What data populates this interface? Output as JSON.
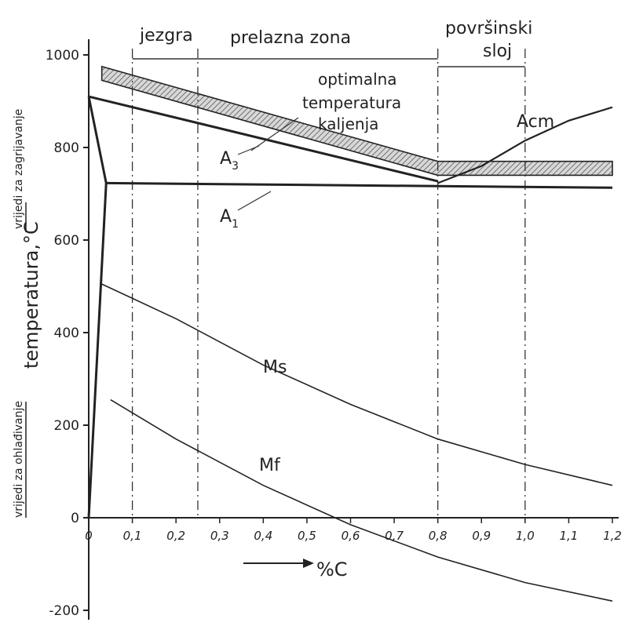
{
  "chart_data": {
    "type": "line",
    "xlim": [
      0,
      1.2
    ],
    "ylim": [
      -200,
      1000
    ],
    "x_ticks": [
      "0",
      "0,1",
      "0,2",
      "0,3",
      "0,4",
      "0,5",
      "0,6",
      "0,7",
      "0,8",
      "0,9",
      "1,0",
      "1,1",
      "1,2"
    ],
    "y_ticks": [
      "1000",
      "800",
      "600",
      "400",
      "200",
      "0",
      "-200"
    ],
    "ylabel": "temperatura,°C",
    "ylabel_upper": "vrijedi za zagrijavanje",
    "ylabel_lower": "vrijedi za ohlađivanje",
    "xlabel": "%C",
    "zones": {
      "core": "jezgra",
      "transition": "prelazna zona",
      "surface_line1": "površinski",
      "surface_line2": "sloj"
    },
    "annotation": {
      "line1": "optimalna",
      "line2": "temperatura",
      "line3": "kaljenja"
    },
    "series": [
      {
        "name": "A3",
        "label_main": "A",
        "label_sub": "3",
        "points": [
          [
            0,
            910
          ],
          [
            0.8,
            727
          ]
        ]
      },
      {
        "name": "A1",
        "label_main": "A",
        "label_sub": "1",
        "points": [
          [
            0.04,
            723
          ],
          [
            1.2,
            713
          ]
        ]
      },
      {
        "name": "Acm",
        "label_main": "Acm",
        "label_sub": "",
        "points": [
          [
            0.8,
            723
          ],
          [
            0.9,
            760
          ],
          [
            1.0,
            815
          ],
          [
            1.1,
            858
          ],
          [
            1.2,
            887
          ]
        ]
      },
      {
        "name": "Ms",
        "label_main": "Ms",
        "label_sub": "",
        "points": [
          [
            0.03,
            505
          ],
          [
            0.2,
            430
          ],
          [
            0.4,
            330
          ],
          [
            0.6,
            245
          ],
          [
            0.8,
            170
          ],
          [
            1.0,
            115
          ],
          [
            1.2,
            70
          ]
        ]
      },
      {
        "name": "Mf",
        "label_main": "Mf",
        "label_sub": "",
        "points": [
          [
            0.05,
            255
          ],
          [
            0.2,
            170
          ],
          [
            0.4,
            70
          ],
          [
            0.6,
            -15
          ],
          [
            0.8,
            -85
          ],
          [
            1.0,
            -140
          ],
          [
            1.2,
            -180
          ]
        ]
      }
    ],
    "quench_band": {
      "upper": [
        [
          0.03,
          975
        ],
        [
          0.8,
          770
        ],
        [
          1.2,
          770
        ]
      ],
      "lower": [
        [
          0.03,
          945
        ],
        [
          0.8,
          740
        ],
        [
          1.2,
          740
        ]
      ]
    },
    "vertical_lines_x": [
      0.1,
      0.25,
      0.8,
      1.0
    ]
  }
}
